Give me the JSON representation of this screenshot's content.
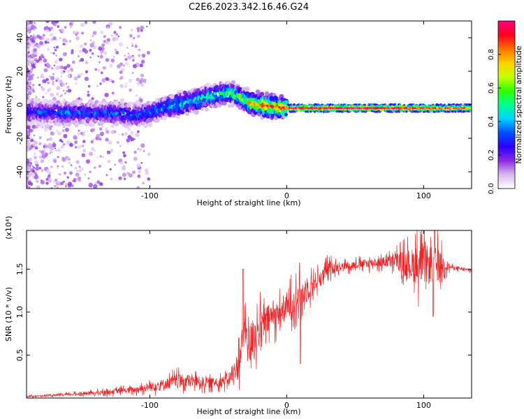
{
  "title": "C2E6.2023.342.16.46.G24",
  "chart_data": [
    {
      "type": "heatmap",
      "xlabel": "Height of straight line (km)",
      "ylabel": "Frequency (Hz)",
      "xlim": [
        -190,
        135
      ],
      "ylim": [
        -50,
        50
      ],
      "xticks": [
        -100,
        0,
        100
      ],
      "xtick_labels": [
        "-100",
        "0",
        "100"
      ],
      "yticks": [
        -40,
        -20,
        0,
        20,
        40
      ],
      "ytick_labels": [
        "-40",
        "-20",
        "0",
        "20",
        "40"
      ],
      "colorbar": {
        "label": "Normalized spectral amplitude",
        "range": [
          0,
          1
        ],
        "ticks": [
          0.0,
          0.2,
          0.4,
          0.6,
          0.8
        ],
        "tick_labels": [
          "0.0",
          "0.2",
          "0.4",
          "0.6",
          "0.8"
        ],
        "colors": [
          "#ffffff",
          "#d9b8f0",
          "#8a2be2",
          "#2c00ff",
          "#0050ff",
          "#00d0ff",
          "#00ff90",
          "#30ff00",
          "#c8ff00",
          "#ffd000",
          "#ff7000",
          "#ff0020",
          "#ff007f"
        ]
      },
      "ridge": {
        "x": [
          -190,
          -160,
          -130,
          -110,
          -100,
          -90,
          -80,
          -70,
          -60,
          -50,
          -40,
          -35,
          -30,
          -25,
          -20,
          -10,
          0,
          20,
          50,
          80,
          100,
          110,
          120,
          135
        ],
        "freq": [
          -4,
          -5,
          -5,
          -6,
          -5,
          -2,
          0,
          2,
          4,
          6,
          7,
          5,
          2,
          1,
          0,
          -1,
          -2,
          -2,
          -2,
          -2,
          -2,
          -2,
          -2,
          -2
        ],
        "amplitude": [
          0.3,
          0.35,
          0.35,
          0.35,
          0.4,
          0.4,
          0.45,
          0.5,
          0.5,
          0.55,
          0.55,
          0.6,
          0.65,
          0.75,
          0.85,
          0.9,
          0.9,
          0.95,
          0.95,
          0.9,
          0.9,
          0.85,
          0.85,
          0.8
        ]
      }
    },
    {
      "type": "line",
      "xlabel": "Height of straight line (km)",
      "ylabel": "SNR (10 * v/v)",
      "multiplier_label": "(x10⁴)",
      "xlim": [
        -190,
        135
      ],
      "ylim": [
        0,
        1.95
      ],
      "xticks": [
        -100,
        0,
        100
      ],
      "xtick_labels": [
        "-100",
        "0",
        "100"
      ],
      "yticks": [
        0.5,
        1.0,
        1.5
      ],
      "ytick_labels": [
        "0.5",
        "1.0",
        "1.5"
      ],
      "color": "#e8262a",
      "envelope": {
        "x": [
          -190,
          -170,
          -150,
          -130,
          -110,
          -100,
          -90,
          -80,
          -70,
          -60,
          -50,
          -45,
          -40,
          -35,
          -32,
          -30,
          -28,
          -25,
          -20,
          -15,
          -10,
          -5,
          0,
          5,
          10,
          15,
          20,
          25,
          30,
          40,
          50,
          60,
          70,
          80,
          90,
          95,
          100,
          105,
          110,
          115,
          120,
          135
        ],
        "base": [
          0.02,
          0.03,
          0.05,
          0.07,
          0.1,
          0.13,
          0.16,
          0.2,
          0.2,
          0.18,
          0.18,
          0.2,
          0.25,
          0.4,
          0.7,
          0.85,
          0.6,
          0.7,
          0.8,
          0.9,
          0.95,
          1.0,
          1.05,
          1.1,
          1.2,
          1.25,
          1.35,
          1.4,
          1.5,
          1.53,
          1.55,
          1.57,
          1.58,
          1.6,
          1.55,
          1.55,
          1.55,
          1.55,
          1.55,
          1.55,
          1.52,
          1.48
        ],
        "noise": [
          0.02,
          0.02,
          0.04,
          0.06,
          0.08,
          0.12,
          0.14,
          0.16,
          0.16,
          0.14,
          0.12,
          0.14,
          0.2,
          0.4,
          0.5,
          0.6,
          0.55,
          0.5,
          0.45,
          0.4,
          0.35,
          0.3,
          0.35,
          0.4,
          0.4,
          0.3,
          0.25,
          0.2,
          0.18,
          0.1,
          0.1,
          0.12,
          0.12,
          0.2,
          0.4,
          0.5,
          0.5,
          0.5,
          0.45,
          0.2,
          0.05,
          0.03
        ]
      },
      "peaks": [
        {
          "x": -32,
          "y": 1.5
        },
        {
          "x": 10,
          "y": 0.4
        },
        {
          "x": 108,
          "y": 1.95
        },
        {
          "x": 107,
          "y": 0.95
        }
      ]
    }
  ]
}
